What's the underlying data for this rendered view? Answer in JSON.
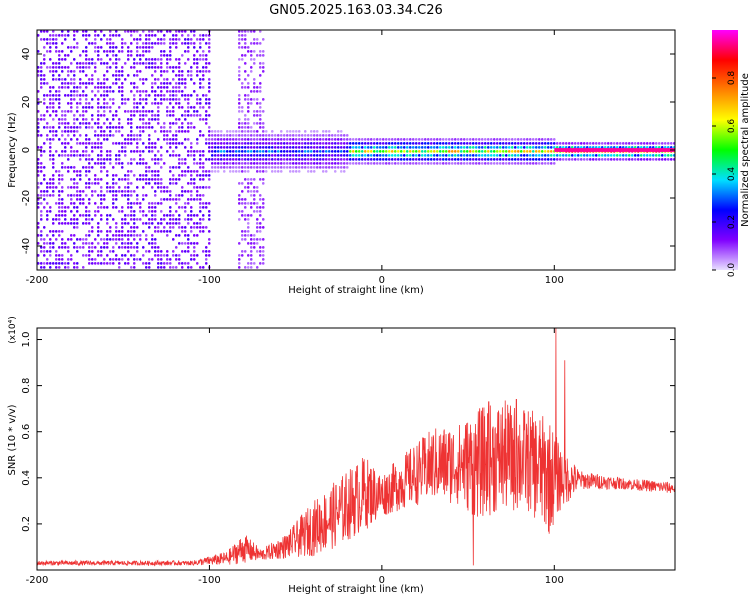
{
  "title": "GN05.2025.163.03.34.C26",
  "chart_data": [
    {
      "type": "heatmap",
      "xlabel": "Height of straight line (km)",
      "ylabel": "Frequency (Hz)",
      "xlim": [
        -200,
        170
      ],
      "ylim": [
        -50,
        50
      ],
      "x_ticks": [
        -200,
        -100,
        0,
        100
      ],
      "y_ticks": [
        -40,
        -20,
        0,
        20,
        40
      ],
      "colorbar": {
        "label": "Normalized spectral amplitude",
        "range": [
          0,
          1
        ],
        "ticks": [
          "0.0",
          "0.2",
          "0.4",
          "0.6",
          "0.8"
        ],
        "colors": [
          "#e8e0ff",
          "#8000ff",
          "#0000ff",
          "#00e0ff",
          "#00ff00",
          "#ffff00",
          "#ff8000",
          "#ff0000",
          "#ff00ff"
        ]
      },
      "regions": [
        {
          "x_range": [
            -200,
            -100
          ],
          "description_value": "broadband noise across all frequencies",
          "amplitude": 0.12
        },
        {
          "x_range": [
            -85,
            -68
          ],
          "description_value": "broadband noise band",
          "amplitude": 0.08
        },
        {
          "x_range": [
            -100,
            -20
          ],
          "center_freq": 0,
          "bandwidth_hz": 10,
          "amplitude": 0.35
        },
        {
          "x_range": [
            -20,
            100
          ],
          "center_freq": 0,
          "bandwidth_hz": 6,
          "amplitude": 0.75
        },
        {
          "x_range": [
            100,
            170
          ],
          "center_freq": 0,
          "bandwidth_hz": 4,
          "amplitude": 0.95
        }
      ]
    },
    {
      "type": "line",
      "xlabel": "Height of straight line (km)",
      "ylabel": "SNR (10 * v/v)",
      "y_multiplier": "(x10⁴)",
      "xlim": [
        -200,
        170
      ],
      "ylim": [
        0,
        1.05
      ],
      "x_ticks": [
        -200,
        -100,
        0,
        100
      ],
      "y_ticks": [
        "0.2",
        "0.4",
        "0.6",
        "0.8",
        "1.0"
      ],
      "series": [
        {
          "color": "#ee3333",
          "envelope": [
            {
              "x": -200,
              "low": 0.02,
              "high": 0.04
            },
            {
              "x": -110,
              "low": 0.02,
              "high": 0.04
            },
            {
              "x": -90,
              "low": 0.02,
              "high": 0.08
            },
            {
              "x": -80,
              "low": 0.03,
              "high": 0.16
            },
            {
              "x": -70,
              "low": 0.04,
              "high": 0.09
            },
            {
              "x": -55,
              "low": 0.05,
              "high": 0.16
            },
            {
              "x": -40,
              "low": 0.06,
              "high": 0.3
            },
            {
              "x": -25,
              "low": 0.1,
              "high": 0.4
            },
            {
              "x": -10,
              "low": 0.17,
              "high": 0.5
            },
            {
              "x": 0,
              "low": 0.23,
              "high": 0.42
            },
            {
              "x": 15,
              "low": 0.27,
              "high": 0.52
            },
            {
              "x": 30,
              "low": 0.3,
              "high": 0.62
            },
            {
              "x": 45,
              "low": 0.28,
              "high": 0.64
            },
            {
              "x": 55,
              "low": 0.22,
              "high": 0.7
            },
            {
              "x": 70,
              "low": 0.25,
              "high": 0.74
            },
            {
              "x": 85,
              "low": 0.25,
              "high": 0.7
            },
            {
              "x": 97,
              "low": 0.15,
              "high": 0.66
            },
            {
              "x": 103,
              "low": 0.25,
              "high": 0.55
            },
            {
              "x": 115,
              "low": 0.35,
              "high": 0.43
            },
            {
              "x": 140,
              "low": 0.35,
              "high": 0.4
            },
            {
              "x": 170,
              "low": 0.33,
              "high": 0.38
            }
          ],
          "spikes": [
            {
              "x": 101,
              "y": 1.05
            },
            {
              "x": 106,
              "y": 0.91
            },
            {
              "x": 78,
              "y": 0.74
            },
            {
              "x": 62,
              "y": 0.73
            },
            {
              "x": 53,
              "y": 0.02
            }
          ]
        }
      ]
    }
  ]
}
